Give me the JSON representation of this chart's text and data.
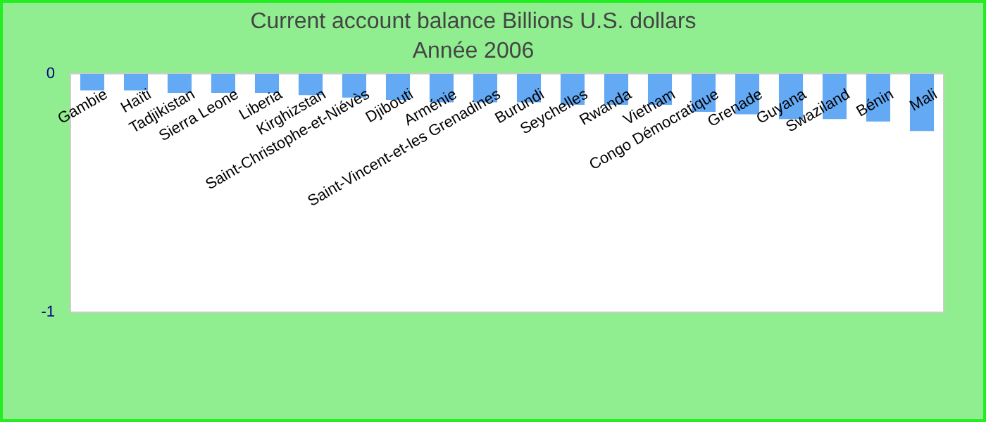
{
  "chart_data": {
    "type": "bar",
    "title": "Current account balance Billions U.S. dollars",
    "subtitle": "Année 2006",
    "categories": [
      "Gambie",
      "Haïti",
      "Tadjikistan",
      "Sierra Leone",
      "Liberia",
      "Kirghizstan",
      "Saint-Christophe-et-Niévès",
      "Djibouti",
      "Arménie",
      "Saint-Vincent-et-les Grenadines",
      "Burundi",
      "Seychelles",
      "Rwanda",
      "Vietnam",
      "Congo Démocratique",
      "Grenade",
      "Guyana",
      "Swaziland",
      "Bénin",
      "Mali"
    ],
    "values": [
      -0.07,
      -0.07,
      -0.08,
      -0.08,
      -0.08,
      -0.09,
      -0.1,
      -0.11,
      -0.12,
      -0.12,
      -0.12,
      -0.13,
      -0.13,
      -0.13,
      -0.16,
      -0.17,
      -0.19,
      -0.19,
      -0.2,
      -0.24
    ],
    "color": "#63a9f3",
    "ylim": [
      -1,
      0
    ],
    "yticks": [
      -1,
      0
    ],
    "grid": false,
    "legend": false
  }
}
